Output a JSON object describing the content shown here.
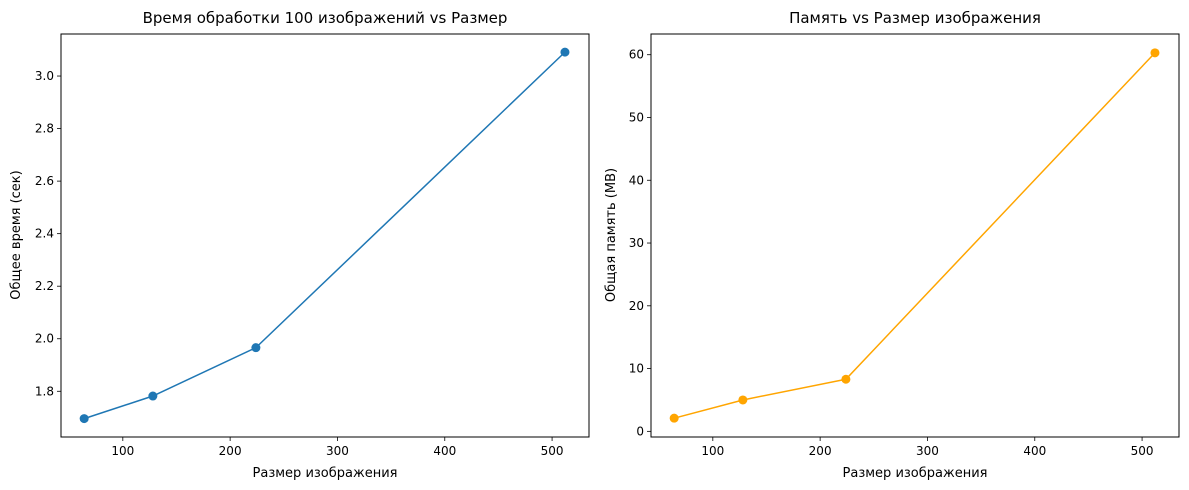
{
  "chart_data": [
    {
      "type": "line",
      "title": "Время обработки 100 изображений vs Размер",
      "xlabel": "Размер изображения",
      "ylabel": "Общее время (сек)",
      "xlim": [
        42.4,
        534.4
      ],
      "ylim": [
        1.626,
        3.16
      ],
      "xticks": [
        100,
        200,
        300,
        400,
        500
      ],
      "xtick_labels": [
        "100",
        "200",
        "300",
        "400",
        "500"
      ],
      "yticks": [
        1.8,
        2.0,
        2.2,
        2.4,
        2.6,
        2.8,
        3.0
      ],
      "ytick_labels": [
        "1.8",
        "2.0",
        "2.2",
        "2.4",
        "2.6",
        "2.8",
        "3.0"
      ],
      "grid": false,
      "series": [
        {
          "color": "#1f77b4",
          "marker": "circle",
          "x": [
            64,
            128,
            224,
            512
          ],
          "y": [
            1.696,
            1.782,
            1.966,
            3.091
          ]
        }
      ]
    },
    {
      "type": "line",
      "title": "Память vs Размер изображения",
      "xlabel": "Размер изображения",
      "ylabel": "Общая память (MB)",
      "xlim": [
        42.4,
        534.4
      ],
      "ylim": [
        -0.9,
        63.3
      ],
      "xticks": [
        100,
        200,
        300,
        400,
        500
      ],
      "xtick_labels": [
        "100",
        "200",
        "300",
        "400",
        "500"
      ],
      "yticks": [
        0,
        10,
        20,
        30,
        40,
        50,
        60
      ],
      "ytick_labels": [
        "0",
        "10",
        "20",
        "30",
        "40",
        "50",
        "60"
      ],
      "grid": false,
      "series": [
        {
          "color": "#ffa500",
          "marker": "circle",
          "x": [
            64,
            128,
            224,
            512
          ],
          "y": [
            2.1,
            5.0,
            8.3,
            60.3
          ]
        }
      ]
    }
  ]
}
